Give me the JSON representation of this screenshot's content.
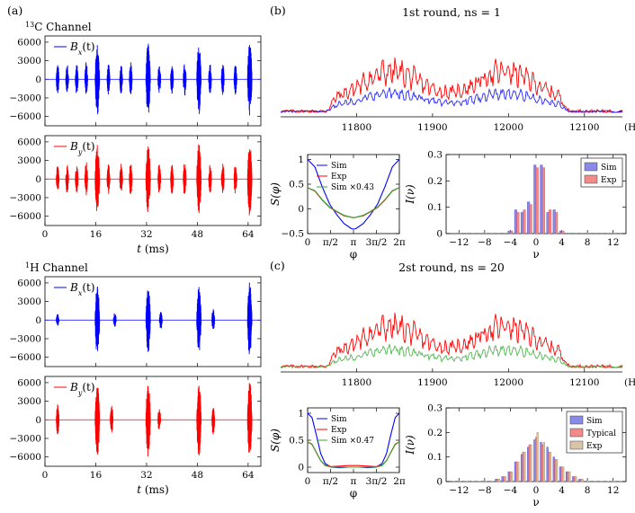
{
  "panel_labels": {
    "a": "(a)",
    "b": "(b)",
    "c": "(c)"
  },
  "channels": {
    "c13": {
      "superscript": "13",
      "rest": "C Channel"
    },
    "h1": {
      "superscript": "1",
      "rest": "H Channel"
    }
  },
  "chart_data": [
    {
      "id": "a1",
      "type": "line",
      "title": "13C Channel",
      "legend": "B_x(t)",
      "legend_main": "B",
      "legend_sub": "x",
      "legend_arg": "(t)",
      "color": "#0000ff",
      "xlim": [
        0,
        68
      ],
      "ylim": [
        -7500,
        7000
      ],
      "yticks": [
        -6000,
        -3000,
        0,
        3000,
        6000
      ],
      "bursts": [
        [
          4,
          2500
        ],
        [
          7,
          2500
        ],
        [
          10,
          2500
        ],
        [
          13,
          2800
        ],
        [
          16.5,
          5800
        ],
        [
          20,
          2500
        ],
        [
          24,
          2500
        ],
        [
          27,
          2800
        ],
        [
          32.5,
          5800
        ],
        [
          36,
          2500
        ],
        [
          40,
          2500
        ],
        [
          44,
          2800
        ],
        [
          48.5,
          5800
        ],
        [
          52,
          2500
        ],
        [
          56,
          2500
        ],
        [
          60,
          2500
        ],
        [
          64.5,
          6000
        ]
      ]
    },
    {
      "id": "a2",
      "type": "line",
      "legend": "B_y(t)",
      "legend_main": "B",
      "legend_sub": "y",
      "legend_arg": "(t)",
      "color": "#ff0000",
      "xlim": [
        0,
        68
      ],
      "ylim": [
        -7500,
        7000
      ],
      "yticks": [
        -6000,
        -3000,
        0,
        3000,
        6000
      ],
      "xticks": [
        0,
        16,
        32,
        48,
        64
      ],
      "xlabel_main": "t",
      "xlabel_unit": " (ms)",
      "bursts": [
        [
          4,
          2500
        ],
        [
          7,
          2500
        ],
        [
          10,
          2500
        ],
        [
          13,
          2800
        ],
        [
          16.5,
          5800
        ],
        [
          20,
          2500
        ],
        [
          24,
          2500
        ],
        [
          27,
          2800
        ],
        [
          32.5,
          5800
        ],
        [
          36,
          2500
        ],
        [
          40,
          2500
        ],
        [
          44,
          2800
        ],
        [
          48.5,
          5800
        ],
        [
          52,
          2500
        ],
        [
          56,
          2500
        ],
        [
          60,
          2500
        ],
        [
          64.5,
          6000
        ]
      ]
    },
    {
      "id": "a3",
      "type": "line",
      "title": "1H Channel",
      "legend": "B_x(t)",
      "legend_main": "B",
      "legend_sub": "x",
      "legend_arg": "(t)",
      "color": "#0000ff",
      "xlim": [
        0,
        68
      ],
      "ylim": [
        -7500,
        7000
      ],
      "yticks": [
        -6000,
        -3000,
        0,
        3000,
        6000
      ],
      "bursts": [
        [
          4,
          1000
        ],
        [
          16.5,
          5800
        ],
        [
          22,
          1200
        ],
        [
          32.5,
          5500
        ],
        [
          36.5,
          1500
        ],
        [
          48.5,
          5500
        ],
        [
          53,
          1800
        ],
        [
          64.5,
          6200
        ]
      ]
    },
    {
      "id": "a4",
      "type": "line",
      "legend": "B_y(t)",
      "legend_main": "B",
      "legend_sub": "y",
      "legend_arg": "(t)",
      "color": "#ff0000",
      "xlim": [
        0,
        68
      ],
      "ylim": [
        -7500,
        7000
      ],
      "yticks": [
        -6000,
        -3000,
        0,
        3000,
        6000
      ],
      "xticks": [
        0,
        16,
        32,
        48,
        64
      ],
      "xlabel_main": "t",
      "xlabel_unit": " (ms)",
      "bursts": [
        [
          4,
          2500
        ],
        [
          16.5,
          6000
        ],
        [
          21,
          2500
        ],
        [
          32.5,
          6000
        ],
        [
          36,
          2000
        ],
        [
          48.5,
          6000
        ],
        [
          53,
          2500
        ],
        [
          64.5,
          6200
        ]
      ]
    },
    {
      "id": "b_spec",
      "type": "line",
      "title": "1st round, ns = 1",
      "xlim": [
        11700,
        12150
      ],
      "xticks": [
        11800,
        11900,
        12000,
        12100
      ],
      "xunit": "(Hz)",
      "band": [
        11760,
        12080
      ],
      "series": [
        {
          "name": "Exp",
          "color": "#ff0000",
          "scale": 1.0
        },
        {
          "name": "Sim",
          "color": "#0000ff",
          "scale": 0.45
        },
        {
          "name": "Sim x0.43",
          "color": "#33aa33",
          "scale": 0.0
        }
      ]
    },
    {
      "id": "b_s",
      "type": "line",
      "xlabel": "φ",
      "ylabel": "S(φ)",
      "xlim": [
        0,
        6.2832
      ],
      "ylim": [
        -0.5,
        1.1
      ],
      "xtick_labels": [
        "0",
        "π/2",
        "π",
        "3π/2",
        "2π"
      ],
      "yticks": [
        -0.5,
        0,
        0.5,
        1
      ],
      "legend": [
        "Sim",
        "Exp",
        "Sim ×0.43"
      ],
      "series": [
        {
          "name": "Sim",
          "color": "#0000ff",
          "x": [
            0,
            0.5,
            1,
            1.5,
            2,
            2.5,
            3,
            3.14,
            3.3,
            3.8,
            4.3,
            4.8,
            5.3,
            5.8,
            6.28
          ],
          "y": [
            1.0,
            0.85,
            0.45,
            0.1,
            -0.12,
            -0.3,
            -0.4,
            -0.41,
            -0.4,
            -0.3,
            -0.12,
            0.1,
            0.45,
            0.85,
            1.0
          ]
        },
        {
          "name": "Exp",
          "color": "#ff0000",
          "x": [
            0,
            0.5,
            1,
            1.5,
            2,
            2.5,
            3,
            3.14,
            3.3,
            3.8,
            4.3,
            4.8,
            5.3,
            5.8,
            6.28
          ],
          "y": [
            0.43,
            0.36,
            0.18,
            0.03,
            -0.06,
            -0.14,
            -0.17,
            -0.18,
            -0.17,
            -0.14,
            -0.06,
            0.03,
            0.18,
            0.36,
            0.43
          ]
        },
        {
          "name": "Sim ×0.43",
          "color": "#33aa33",
          "x": [
            0,
            0.5,
            1,
            1.5,
            2,
            2.5,
            3,
            3.14,
            3.3,
            3.8,
            4.3,
            4.8,
            5.3,
            5.8,
            6.28
          ],
          "y": [
            0.43,
            0.37,
            0.19,
            0.04,
            -0.05,
            -0.13,
            -0.17,
            -0.18,
            -0.17,
            -0.13,
            -0.05,
            0.04,
            0.19,
            0.37,
            0.43
          ]
        }
      ]
    },
    {
      "id": "b_i",
      "type": "bar",
      "xlabel": "ν",
      "ylabel": "I(ν)",
      "xlim": [
        -14,
        14
      ],
      "ylim": [
        0,
        0.3
      ],
      "xticks": [
        -12,
        -8,
        -4,
        0,
        4,
        8,
        12
      ],
      "yticks": [
        0,
        0.1,
        0.2,
        0.3
      ],
      "categories": [
        -13,
        -12,
        -11,
        -10,
        -9,
        -8,
        -7,
        -6,
        -5,
        -4,
        -3,
        -2,
        -1,
        0,
        1,
        2,
        3,
        4,
        5,
        6,
        7,
        8,
        9,
        10,
        11,
        12,
        13
      ],
      "series": [
        {
          "name": "Sim",
          "color": "#8a8ae8",
          "values": [
            0,
            0,
            0,
            0,
            0,
            0,
            0,
            0,
            0,
            0.01,
            0.09,
            0.08,
            0.12,
            0.26,
            0.26,
            0.08,
            0.09,
            0.01,
            0,
            0,
            0,
            0,
            0,
            0,
            0,
            0,
            0
          ]
        },
        {
          "name": "Exp",
          "color": "#f28a8a",
          "values": [
            0,
            0,
            0,
            0,
            0,
            0,
            0,
            0,
            0,
            0.01,
            0.08,
            0.09,
            0.11,
            0.25,
            0.25,
            0.09,
            0.08,
            0.01,
            0,
            0,
            0,
            0,
            0,
            0,
            0,
            0,
            0
          ]
        }
      ]
    },
    {
      "id": "c_spec",
      "type": "line",
      "title": "2st round, ns = 20",
      "xlim": [
        11700,
        12150
      ],
      "xticks": [
        11800,
        11900,
        12000,
        12100
      ],
      "xunit": "(Hz)",
      "band": [
        11760,
        12080
      ],
      "series": [
        {
          "name": "Exp",
          "color": "#ff0000",
          "scale": 1.0
        },
        {
          "name": "Sim",
          "color": "#33aa33",
          "scale": 0.42
        },
        {
          "name": "Sim x0.47",
          "color": "#0000ff",
          "scale": 0.0
        }
      ]
    },
    {
      "id": "c_s",
      "type": "line",
      "xlabel": "φ",
      "ylabel": "S(φ)",
      "xlim": [
        0,
        6.2832
      ],
      "ylim": [
        -0.1,
        1.1
      ],
      "xtick_labels": [
        "0",
        "π/2",
        "π",
        "3π/2",
        "2π"
      ],
      "yticks": [
        0,
        0.5,
        1
      ],
      "legend": [
        "Sim",
        "Exp",
        "Sim ×0.47"
      ],
      "series": [
        {
          "name": "Sim",
          "color": "#0000ff",
          "x": [
            0,
            0.3,
            0.6,
            0.9,
            1.2,
            1.6,
            2.2,
            2.8,
            3.14,
            3.5,
            4.1,
            4.7,
            5.1,
            5.4,
            5.7,
            6.0,
            6.28
          ],
          "y": [
            1.0,
            0.92,
            0.6,
            0.25,
            0.07,
            0.0,
            -0.01,
            0.0,
            0.0,
            0.0,
            -0.01,
            0.0,
            0.07,
            0.25,
            0.6,
            0.92,
            1.0
          ]
        },
        {
          "name": "Exp",
          "color": "#ff0000",
          "x": [
            0,
            0.3,
            0.6,
            0.9,
            1.2,
            1.6,
            2.2,
            2.8,
            3.14,
            3.5,
            4.1,
            4.7,
            5.1,
            5.4,
            5.7,
            6.0,
            6.28
          ],
          "y": [
            0.47,
            0.42,
            0.27,
            0.12,
            0.04,
            0.01,
            0.02,
            0.03,
            0.03,
            0.03,
            0.02,
            0.01,
            0.04,
            0.12,
            0.27,
            0.42,
            0.47
          ]
        },
        {
          "name": "Sim ×0.47",
          "color": "#33aa33",
          "x": [
            0,
            0.3,
            0.6,
            0.9,
            1.2,
            1.6,
            2.2,
            2.8,
            3.14,
            3.5,
            4.1,
            4.7,
            5.1,
            5.4,
            5.7,
            6.0,
            6.28
          ],
          "y": [
            0.47,
            0.43,
            0.28,
            0.12,
            0.03,
            0.0,
            0.0,
            0.0,
            0.0,
            0.0,
            0.0,
            0.0,
            0.03,
            0.12,
            0.28,
            0.43,
            0.47
          ]
        }
      ]
    },
    {
      "id": "c_i",
      "type": "bar",
      "xlabel": "ν",
      "ylabel": "I(ν)",
      "xlim": [
        -14,
        14
      ],
      "ylim": [
        0,
        0.3
      ],
      "xticks": [
        -12,
        -8,
        -4,
        0,
        4,
        8,
        12
      ],
      "yticks": [
        0,
        0.1,
        0.2,
        0.3
      ],
      "categories": [
        -13,
        -12,
        -11,
        -10,
        -9,
        -8,
        -7,
        -6,
        -5,
        -4,
        -3,
        -2,
        -1,
        0,
        1,
        2,
        3,
        4,
        5,
        6,
        7,
        8,
        9,
        10,
        11,
        12,
        13
      ],
      "series": [
        {
          "name": "Sim",
          "color": "#8a8ae8",
          "values": [
            0,
            0,
            0,
            0,
            0,
            0,
            0,
            0.01,
            0.02,
            0.04,
            0.08,
            0.11,
            0.14,
            0.17,
            0.16,
            0.14,
            0.1,
            0.06,
            0.04,
            0.02,
            0.01,
            0,
            0,
            0,
            0,
            0,
            0
          ]
        },
        {
          "name": "Typical",
          "color": "#f28a8a",
          "values": [
            0,
            0,
            0,
            0,
            0,
            0,
            0,
            0.01,
            0.02,
            0.04,
            0.08,
            0.12,
            0.15,
            0.18,
            0.15,
            0.12,
            0.09,
            0.06,
            0.04,
            0.02,
            0.01,
            0,
            0,
            0,
            0,
            0,
            0
          ]
        },
        {
          "name": "Exp",
          "color": "#d9c4a8",
          "values": [
            0,
            0,
            0,
            0,
            0,
            0,
            0,
            0.01,
            0.02,
            0.04,
            0.08,
            0.12,
            0.15,
            0.2,
            0.16,
            0.12,
            0.09,
            0.06,
            0.04,
            0.02,
            0.01,
            0,
            0,
            0,
            0,
            0,
            0
          ]
        }
      ]
    }
  ]
}
